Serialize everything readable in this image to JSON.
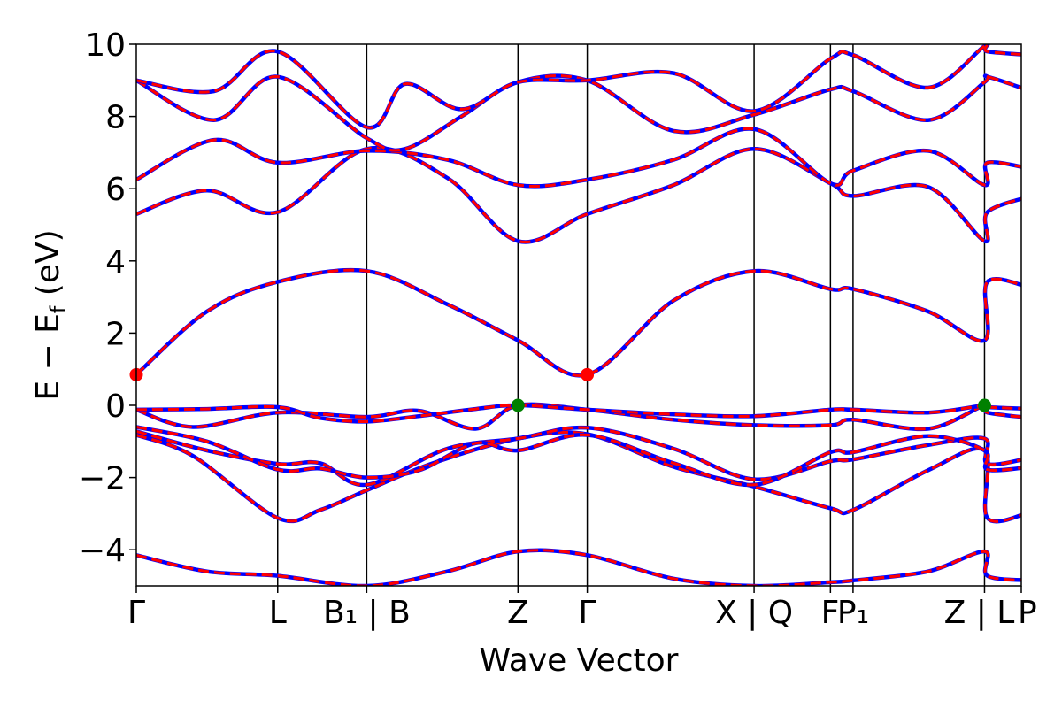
{
  "chart_data": {
    "type": "line",
    "title": "",
    "xlabel": "Wave Vector",
    "ylabel": "E − E_f (eV)",
    "ylabel_parts": {
      "main": "E − E",
      "sub": "f",
      "unit": " (eV)"
    },
    "ylim": [
      -5,
      10
    ],
    "grid": false,
    "legend": "none",
    "y_ticks": [
      -4,
      -2,
      0,
      2,
      4,
      6,
      8,
      10
    ],
    "y_tick_labels": [
      "−4",
      "−2",
      "0",
      "2",
      "4",
      "6",
      "8",
      "10"
    ],
    "x_range": [
      0,
      6.26
    ],
    "x_ticks": [
      0,
      1.0,
      1.63,
      2.7,
      3.19,
      4.37,
      4.91,
      5.07,
      6.0,
      6.33
    ],
    "x_tick_labels": [
      "Γ",
      "L",
      "B₁ | B",
      "Z",
      "Γ",
      "X | Q",
      "F",
      "P₁",
      "Z | L",
      "P"
    ],
    "x_tick_label_items": [
      {
        "x": 0,
        "label": "Γ"
      },
      {
        "x": 1.0,
        "label": "L"
      },
      {
        "x": 1.63,
        "label": "B₁ | B"
      },
      {
        "x": 2.7,
        "label": "Z"
      },
      {
        "x": 3.19,
        "label": "Γ"
      },
      {
        "x": 4.37,
        "label": "X | Q"
      },
      {
        "x": 4.91,
        "label": "F"
      },
      {
        "x": 5.07,
        "label": "P₁"
      },
      {
        "x": 6.0,
        "label": "Z | L"
      },
      {
        "x": 6.33,
        "label": "P"
      }
    ],
    "colors": {
      "line_primary": "#ff0000",
      "line_secondary": "#0000ff",
      "cbm_marker": "#ff0000",
      "vbm_marker": "#008000",
      "axis": "#000000"
    },
    "markers": [
      {
        "x": 0,
        "y": 0.85,
        "kind": "cbm"
      },
      {
        "x": 3.19,
        "y": 0.85,
        "kind": "cbm"
      },
      {
        "x": 2.7,
        "y": 0.0,
        "kind": "vbm"
      },
      {
        "x": 6.0,
        "y": 0.0,
        "kind": "vbm"
      }
    ],
    "series": [
      {
        "values": [
          [
            0,
            -4.15
          ],
          [
            0.5,
            -4.6
          ],
          [
            1.0,
            -4.72
          ],
          [
            1.63,
            -5.0
          ],
          [
            2.2,
            -4.6
          ],
          [
            2.7,
            -4.05
          ],
          [
            3.19,
            -4.15
          ],
          [
            3.8,
            -4.8
          ],
          [
            4.37,
            -5.0
          ],
          [
            4.91,
            -4.9
          ],
          [
            5.07,
            -4.85
          ],
          [
            5.6,
            -4.6
          ],
          [
            6.0,
            -4.05
          ],
          [
            6.02,
            -4.72
          ],
          [
            6.33,
            -4.85
          ]
        ]
      },
      {
        "values": [
          [
            0,
            -0.82
          ],
          [
            0.4,
            -1.4
          ],
          [
            1.0,
            -3.12
          ],
          [
            1.3,
            -2.9
          ],
          [
            1.63,
            -2.35
          ],
          [
            2.1,
            -1.6
          ],
          [
            2.7,
            -0.92
          ],
          [
            3.19,
            -0.8
          ],
          [
            3.8,
            -1.7
          ],
          [
            4.37,
            -2.25
          ],
          [
            4.91,
            -2.85
          ],
          [
            5.07,
            -2.9
          ],
          [
            5.6,
            -1.8
          ],
          [
            6.0,
            -1.25
          ],
          [
            6.02,
            -3.12
          ],
          [
            6.33,
            -2.95
          ]
        ]
      },
      {
        "values": [
          [
            0,
            -0.72
          ],
          [
            0.5,
            -1.25
          ],
          [
            1.0,
            -1.62
          ],
          [
            1.3,
            -1.6
          ],
          [
            1.63,
            -2.2
          ],
          [
            2.2,
            -1.2
          ],
          [
            2.7,
            -0.92
          ],
          [
            3.19,
            -0.62
          ],
          [
            3.8,
            -1.2
          ],
          [
            4.37,
            -2.05
          ],
          [
            4.91,
            -1.55
          ],
          [
            5.07,
            -1.5
          ],
          [
            5.6,
            -1.1
          ],
          [
            6.0,
            -0.92
          ],
          [
            6.02,
            -1.62
          ],
          [
            6.33,
            -1.45
          ]
        ]
      },
      {
        "values": [
          [
            0,
            -0.6
          ],
          [
            0.5,
            -1.0
          ],
          [
            1.0,
            -1.78
          ],
          [
            1.3,
            -1.75
          ],
          [
            1.63,
            -2.0
          ],
          [
            2.0,
            -1.8
          ],
          [
            2.4,
            -1.05
          ],
          [
            2.7,
            -1.25
          ],
          [
            3.19,
            -0.82
          ],
          [
            3.8,
            -1.6
          ],
          [
            4.37,
            -2.2
          ],
          [
            4.91,
            -1.3
          ],
          [
            5.07,
            -1.3
          ],
          [
            5.6,
            -0.85
          ],
          [
            6.0,
            -1.25
          ],
          [
            6.02,
            -1.78
          ],
          [
            6.33,
            -1.7
          ]
        ]
      },
      {
        "values": [
          [
            0,
            -0.12
          ],
          [
            0.4,
            -0.6
          ],
          [
            1.0,
            -0.2
          ],
          [
            1.63,
            -0.32
          ],
          [
            2.0,
            -0.15
          ],
          [
            2.4,
            -0.65
          ],
          [
            2.7,
            0.0
          ],
          [
            3.19,
            -0.12
          ],
          [
            3.8,
            -0.4
          ],
          [
            4.37,
            -0.55
          ],
          [
            4.91,
            -0.55
          ],
          [
            5.07,
            -0.4
          ],
          [
            5.6,
            -0.65
          ],
          [
            6.0,
            0.0
          ],
          [
            6.02,
            -0.2
          ],
          [
            6.33,
            -0.35
          ]
        ]
      },
      {
        "values": [
          [
            0,
            -0.12
          ],
          [
            0.5,
            -0.1
          ],
          [
            1.0,
            -0.05
          ],
          [
            1.3,
            -0.35
          ],
          [
            1.63,
            -0.45
          ],
          [
            2.0,
            -0.3
          ],
          [
            2.4,
            -0.1
          ],
          [
            2.7,
            0.0
          ],
          [
            3.19,
            -0.12
          ],
          [
            3.8,
            -0.25
          ],
          [
            4.37,
            -0.3
          ],
          [
            4.91,
            -0.12
          ],
          [
            5.07,
            -0.12
          ],
          [
            5.6,
            -0.2
          ],
          [
            6.0,
            0.0
          ],
          [
            6.02,
            -0.05
          ],
          [
            6.33,
            -0.1
          ]
        ]
      },
      {
        "values": [
          [
            0,
            0.85
          ],
          [
            0.5,
            2.6
          ],
          [
            1.0,
            3.42
          ],
          [
            1.63,
            3.72
          ],
          [
            2.2,
            2.8
          ],
          [
            2.7,
            1.8
          ],
          [
            3.19,
            0.85
          ],
          [
            3.8,
            2.9
          ],
          [
            4.37,
            3.72
          ],
          [
            4.91,
            3.22
          ],
          [
            5.07,
            3.22
          ],
          [
            5.6,
            2.6
          ],
          [
            6.0,
            1.8
          ],
          [
            6.02,
            3.42
          ],
          [
            6.33,
            3.25
          ]
        ]
      },
      {
        "values": [
          [
            0,
            5.3
          ],
          [
            0.5,
            5.95
          ],
          [
            1.0,
            5.35
          ],
          [
            1.63,
            7.1
          ],
          [
            2.2,
            6.3
          ],
          [
            2.7,
            4.55
          ],
          [
            3.19,
            5.3
          ],
          [
            3.8,
            6.1
          ],
          [
            4.37,
            7.1
          ],
          [
            4.91,
            6.15
          ],
          [
            5.07,
            5.8
          ],
          [
            5.6,
            6.05
          ],
          [
            6.0,
            4.55
          ],
          [
            6.02,
            5.35
          ],
          [
            6.33,
            5.8
          ]
        ]
      },
      {
        "values": [
          [
            0,
            6.25
          ],
          [
            0.55,
            7.35
          ],
          [
            1.0,
            6.72
          ],
          [
            1.63,
            7.05
          ],
          [
            2.2,
            6.8
          ],
          [
            2.7,
            6.1
          ],
          [
            3.19,
            6.25
          ],
          [
            3.8,
            6.8
          ],
          [
            4.37,
            7.65
          ],
          [
            4.91,
            6.15
          ],
          [
            5.07,
            6.5
          ],
          [
            5.6,
            7.05
          ],
          [
            6.0,
            6.1
          ],
          [
            6.02,
            6.72
          ],
          [
            6.33,
            6.55
          ]
        ]
      },
      {
        "values": [
          [
            0,
            9.0
          ],
          [
            0.55,
            7.9
          ],
          [
            1.0,
            9.1
          ],
          [
            1.63,
            7.4
          ],
          [
            1.9,
            7.1
          ],
          [
            2.3,
            8.0
          ],
          [
            2.7,
            8.95
          ],
          [
            3.19,
            9.0
          ],
          [
            3.8,
            7.6
          ],
          [
            4.37,
            8.05
          ],
          [
            4.91,
            8.75
          ],
          [
            5.07,
            8.7
          ],
          [
            5.6,
            7.9
          ],
          [
            6.0,
            8.95
          ],
          [
            6.02,
            9.1
          ],
          [
            6.33,
            8.7
          ]
        ]
      },
      {
        "values": [
          [
            0,
            9.0
          ],
          [
            0.55,
            8.7
          ],
          [
            1.0,
            9.8
          ],
          [
            1.63,
            7.7
          ],
          [
            1.9,
            8.9
          ],
          [
            2.3,
            8.2
          ],
          [
            2.7,
            8.95
          ],
          [
            3.19,
            9.0
          ],
          [
            3.8,
            9.2
          ],
          [
            4.37,
            8.15
          ],
          [
            4.91,
            9.6
          ],
          [
            5.07,
            9.7
          ],
          [
            5.6,
            8.8
          ],
          [
            6.0,
            9.95
          ],
          [
            6.02,
            9.8
          ],
          [
            6.33,
            9.7
          ]
        ]
      }
    ]
  }
}
